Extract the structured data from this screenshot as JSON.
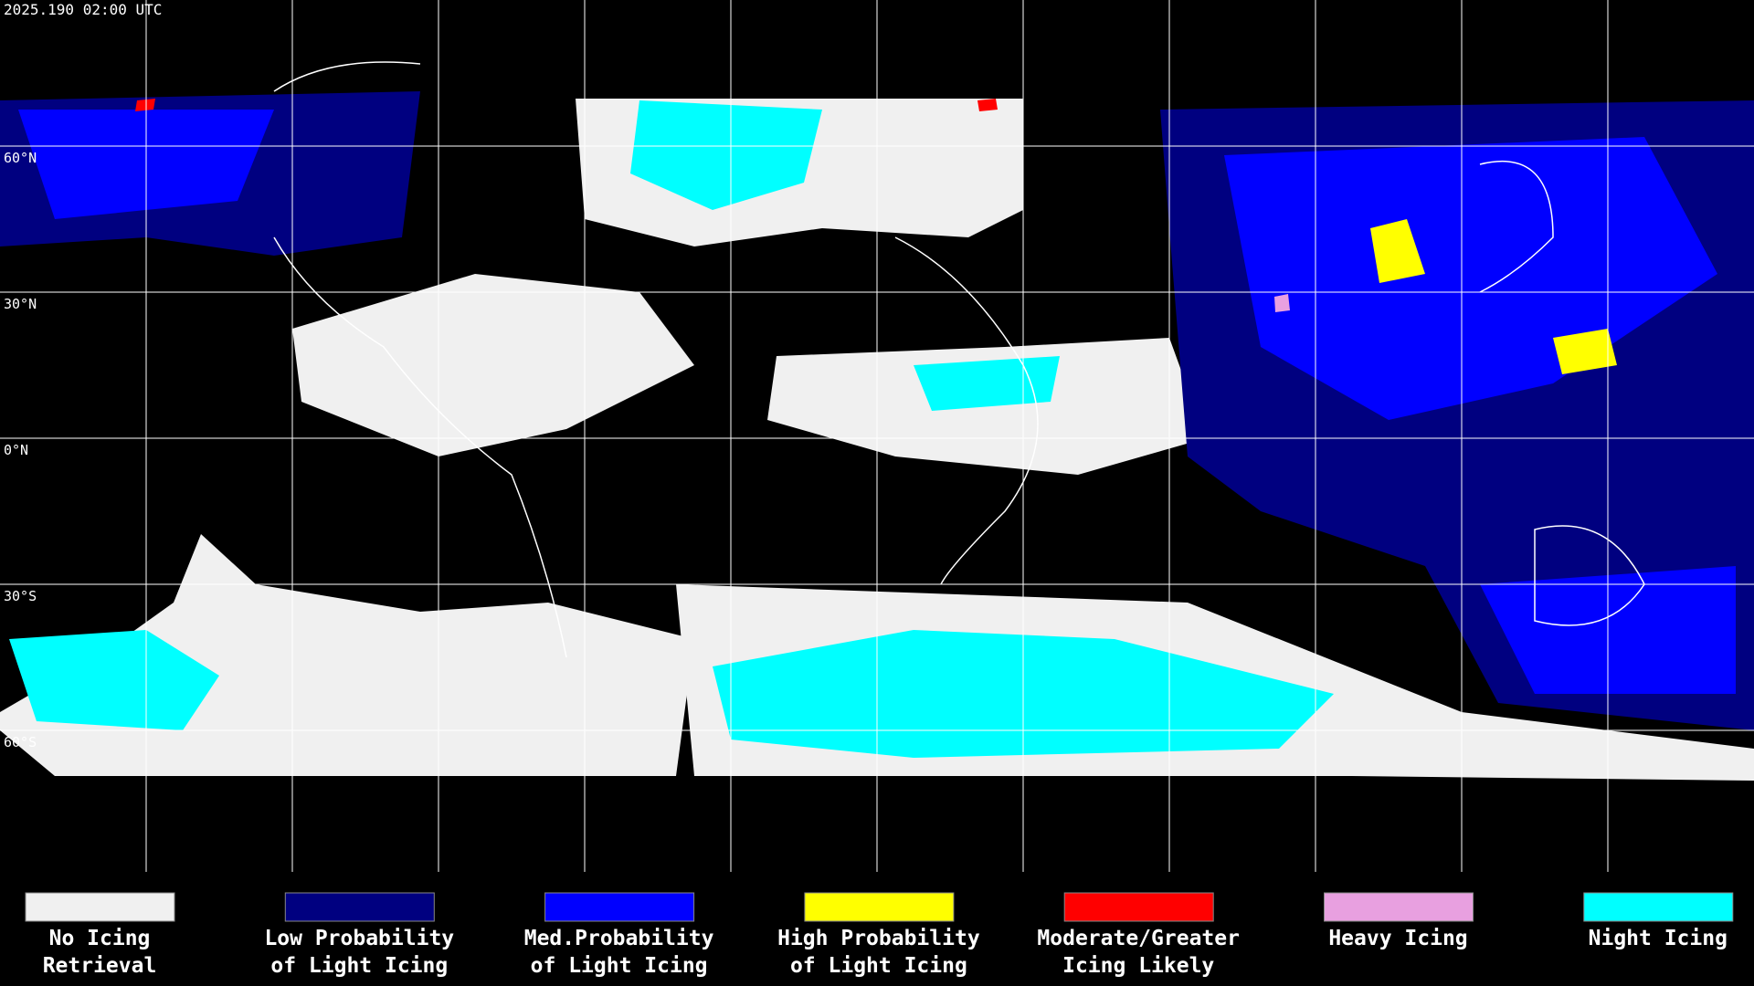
{
  "header": {
    "timestamp": "2025.190 02:00 UTC"
  },
  "map": {
    "latitude_labels": [
      "60°N",
      "30°N",
      "0°N",
      "30°S",
      "60°S"
    ]
  },
  "legend": {
    "items": [
      {
        "color": "#f0f0f0",
        "label": [
          "No Icing",
          "Retrieval"
        ]
      },
      {
        "color": "#000080",
        "label": [
          "Low Probability",
          "of Light Icing"
        ]
      },
      {
        "color": "#0000ff",
        "label": [
          "Med.Probability",
          "of Light Icing"
        ]
      },
      {
        "color": "#ffff00",
        "label": [
          "High Probability",
          "of Light Icing"
        ]
      },
      {
        "color": "#ff0000",
        "label": [
          "Moderate/Greater",
          "Icing Likely"
        ]
      },
      {
        "color": "#e8a0e0",
        "label": [
          "Heavy Icing"
        ]
      },
      {
        "color": "#00ffff",
        "label": [
          "Night Icing"
        ]
      }
    ]
  }
}
